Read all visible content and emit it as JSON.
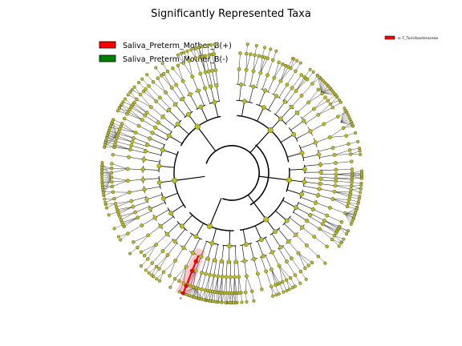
{
  "title": "Significantly Represented Taxa",
  "legend": {
    "items": [
      {
        "label": "Saliva_Preterm_Mother_B(+)",
        "color": "#ff0000"
      },
      {
        "label": "Saliva_Preterm_Mother_B(-)",
        "color": "#008000"
      }
    ]
  },
  "clade_legend": {
    "label": "a: F_Turicibacteraceae",
    "color": "#ff0000"
  },
  "colors": {
    "node_default": "#bdbd1a",
    "node_positive": "#ff0000",
    "node_negative": "#008000",
    "highlight": "#ff9aa2",
    "edge": "#000000"
  },
  "clade_annotation": "a"
}
